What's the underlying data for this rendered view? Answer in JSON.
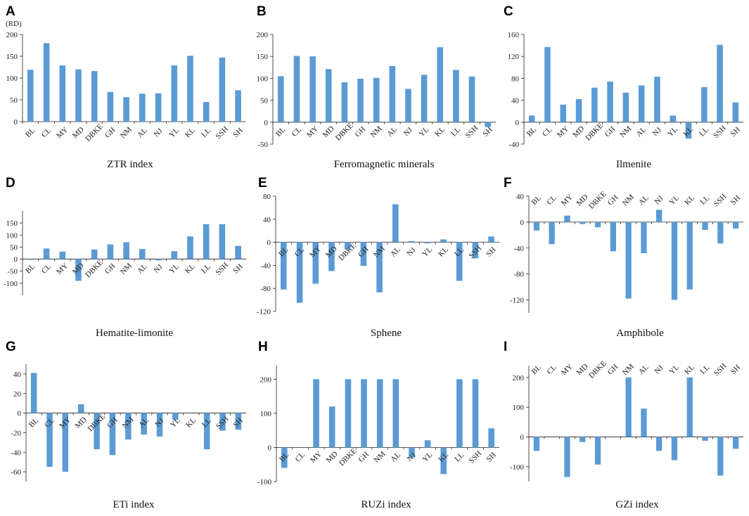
{
  "figure_unit": "(RD)",
  "chart_data": [
    {
      "type": "bar",
      "panel": "A",
      "title": "ZTR index",
      "categories": [
        "BL",
        "CL",
        "MY",
        "MD",
        "DBKE",
        "GH",
        "NM",
        "AL",
        "NJ",
        "YL",
        "KL",
        "LL",
        "SSH",
        "SH"
      ],
      "values": [
        119,
        180,
        129,
        120,
        116,
        68,
        56,
        64,
        65,
        129,
        151,
        45,
        147,
        72
      ],
      "ylim": [
        0,
        200
      ],
      "yticks": [
        0,
        50,
        100,
        150,
        200
      ],
      "label_position": "below-axis"
    },
    {
      "type": "bar",
      "panel": "B",
      "title": "Ferromagnetic minerals",
      "categories": [
        "BL",
        "CL",
        "MY",
        "MD",
        "DBKE",
        "GH",
        "NM",
        "AL",
        "NJ",
        "YL",
        "KL",
        "LL",
        "SSH",
        "SH"
      ],
      "values": [
        105,
        151,
        150,
        121,
        91,
        99,
        101,
        128,
        76,
        108,
        171,
        119,
        104,
        -11
      ],
      "ylim": [
        -50,
        200
      ],
      "yticks": [
        -50,
        0,
        50,
        100,
        150,
        200
      ],
      "label_position": "on-axis"
    },
    {
      "type": "bar",
      "panel": "C",
      "title": "Ilmenite",
      "categories": [
        "BL",
        "CL",
        "MY",
        "MD",
        "DBKE",
        "GH",
        "NM",
        "AL",
        "NJ",
        "YL",
        "KL",
        "LL",
        "SSH",
        "SH"
      ],
      "values": [
        12,
        137,
        32,
        42,
        63,
        74,
        54,
        67,
        83,
        12,
        -30,
        64,
        141,
        36
      ],
      "ylim": [
        -40,
        160
      ],
      "yticks": [
        -40,
        0,
        40,
        80,
        120,
        160
      ],
      "label_position": "on-axis"
    },
    {
      "type": "bar",
      "panel": "D",
      "title": "Hematite-limonite",
      "categories": [
        "BL",
        "CL",
        "MY",
        "MD",
        "DBKE",
        "GH",
        "NM",
        "AL",
        "NJ",
        "YL",
        "KL",
        "LL",
        "SSH",
        "SH"
      ],
      "values": [
        -3,
        44,
        31,
        -90,
        40,
        61,
        70,
        42,
        -5,
        33,
        94,
        145,
        145,
        55
      ],
      "ylim": [
        -150,
        200
      ],
      "yticks": [
        -100,
        -50,
        0,
        50,
        100,
        150
      ],
      "label_position": "on-axis"
    },
    {
      "type": "bar",
      "panel": "E",
      "title": "Sphene",
      "categories": [
        "BL",
        "CL",
        "MY",
        "MD",
        "DBKE",
        "GH",
        "NM",
        "AL",
        "NJ",
        "YL",
        "KL",
        "LL",
        "SSH",
        "SH"
      ],
      "values": [
        -82,
        -105,
        -72,
        -50,
        -12,
        -41,
        -87,
        66,
        2,
        -2,
        5,
        -67,
        -28,
        10
      ],
      "ylim": [
        -120,
        80
      ],
      "yticks": [
        -120,
        -80,
        -40,
        0,
        40,
        80
      ],
      "label_position": "on-axis"
    },
    {
      "type": "bar",
      "panel": "F",
      "title": "Amphibole",
      "categories": [
        "BL",
        "CL",
        "MY",
        "MD",
        "DBKE",
        "GH",
        "NM",
        "AL",
        "NJ",
        "YL",
        "KL",
        "LL",
        "SSH",
        "SH"
      ],
      "values": [
        -13,
        -34,
        10,
        -3,
        -8,
        -45,
        -118,
        -48,
        19,
        -120,
        -104,
        -12,
        -33,
        -10
      ],
      "ylim": [
        -140,
        40
      ],
      "yticks": [
        -120,
        -80,
        -40,
        0,
        40
      ],
      "label_position": "top"
    },
    {
      "type": "bar",
      "panel": "G",
      "title": "ETi index",
      "categories": [
        "BL",
        "CL",
        "MY",
        "MD",
        "DBKE",
        "GH",
        "NM",
        "AL",
        "NJ",
        "YL",
        "KL",
        "LL",
        "SSH",
        "SH"
      ],
      "values": [
        41,
        -55,
        -60,
        9,
        -37,
        -43,
        -27,
        -22,
        -24,
        -7,
        0,
        -37,
        -18,
        -17
      ],
      "ylim": [
        -70,
        50
      ],
      "yticks": [
        -60,
        -40,
        -20,
        0,
        20,
        40
      ],
      "label_position": "on-axis"
    },
    {
      "type": "bar",
      "panel": "H",
      "title": "RUZi index",
      "categories": [
        "BL",
        "CL",
        "MY",
        "MD",
        "DBKE",
        "GH",
        "NM",
        "AL",
        "NJ",
        "YL",
        "KL",
        "LL",
        "SSH",
        "SH"
      ],
      "values": [
        -60,
        0,
        200,
        120,
        200,
        200,
        200,
        200,
        -28,
        21,
        -78,
        200,
        200,
        56
      ],
      "ylim": [
        -100,
        240
      ],
      "yticks": [
        -100,
        0,
        100,
        200
      ],
      "label_position": "on-axis"
    },
    {
      "type": "bar",
      "panel": "I",
      "title": "GZi index",
      "categories": [
        "BL",
        "CL",
        "MY",
        "MD",
        "DBKE",
        "GH",
        "NM",
        "AL",
        "NJ",
        "YL",
        "KL",
        "LL",
        "SSH",
        "SH"
      ],
      "values": [
        -47,
        0,
        -135,
        -17,
        -93,
        0,
        200,
        95,
        -47,
        -78,
        200,
        -13,
        -130,
        -40
      ],
      "ylim": [
        -150,
        240
      ],
      "yticks": [
        -100,
        0,
        100,
        200
      ],
      "label_position": "top"
    }
  ]
}
